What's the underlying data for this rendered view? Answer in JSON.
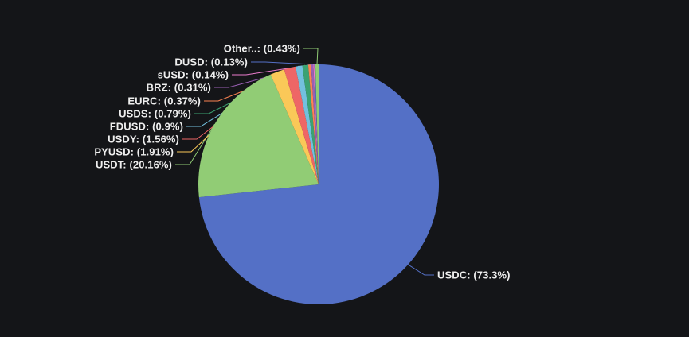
{
  "chart_data": {
    "type": "pie",
    "title": "",
    "legend": "none",
    "background": "#141518",
    "label_color": "#eeeeee",
    "start_angle": "top",
    "direction": "clockwise",
    "categories": [
      "USDC",
      "USDT",
      "PYUSD",
      "USDY",
      "FDUSD",
      "USDS",
      "EURC",
      "BRZ",
      "sUSD",
      "DUSD",
      "Other.."
    ],
    "values": [
      73.3,
      20.16,
      1.91,
      1.56,
      0.9,
      0.79,
      0.37,
      0.31,
      0.14,
      0.13,
      0.43
    ],
    "slices": [
      {
        "name": "USDC",
        "display": "USDC: (73.3%)",
        "value": 73.3,
        "color": "#5470c6"
      },
      {
        "name": "USDT",
        "display": "USDT: (20.16%)",
        "value": 20.16,
        "color": "#91cc75"
      },
      {
        "name": "PYUSD",
        "display": "PYUSD: (1.91%)",
        "value": 1.91,
        "color": "#fac858"
      },
      {
        "name": "USDY",
        "display": "USDY: (1.56%)",
        "value": 1.56,
        "color": "#ee6666"
      },
      {
        "name": "FDUSD",
        "display": "FDUSD: (0.9%)",
        "value": 0.9,
        "color": "#73c0de"
      },
      {
        "name": "USDS",
        "display": "USDS: (0.79%)",
        "value": 0.79,
        "color": "#3ba272"
      },
      {
        "name": "EURC",
        "display": "EURC: (0.37%)",
        "value": 0.37,
        "color": "#fc8452"
      },
      {
        "name": "BRZ",
        "display": "BRZ: (0.31%)",
        "value": 0.31,
        "color": "#9a60b4"
      },
      {
        "name": "sUSD",
        "display": "sUSD: (0.14%)",
        "value": 0.14,
        "color": "#ea7ccc"
      },
      {
        "name": "DUSD",
        "display": "DUSD: (0.13%)",
        "value": 0.13,
        "color": "#5470c6"
      },
      {
        "name": "Other",
        "display": "Other..: (0.43%)",
        "value": 0.43,
        "color": "#91cc75"
      }
    ]
  }
}
